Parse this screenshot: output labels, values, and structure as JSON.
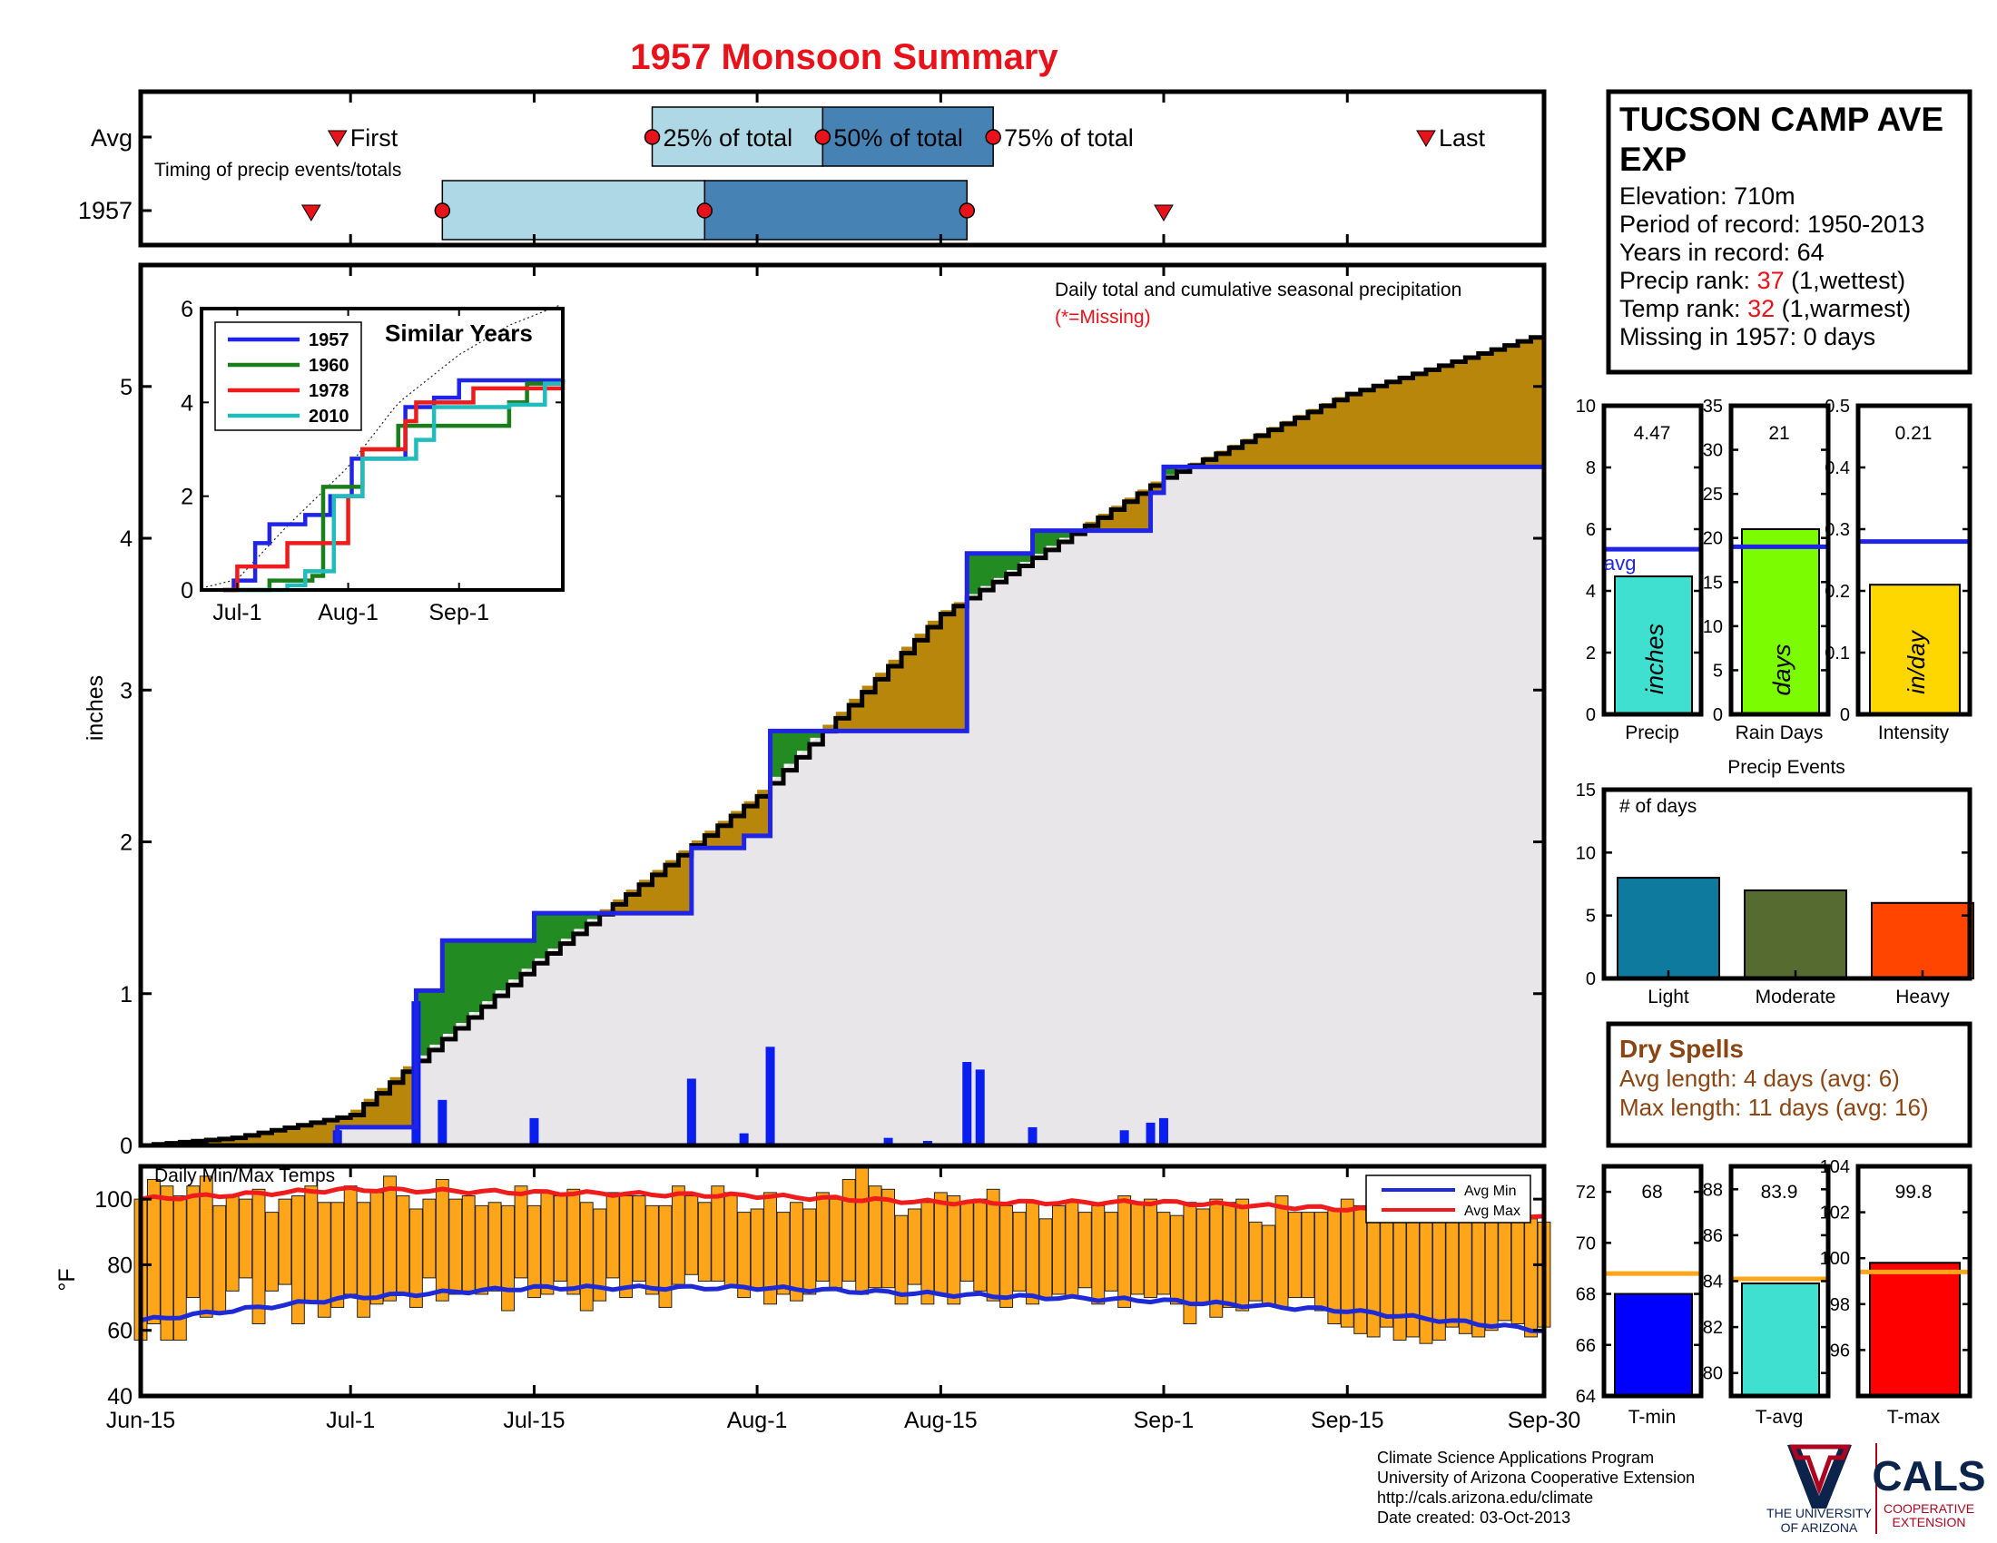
{
  "title": "1957 Monsoon Summary",
  "colors": {
    "title": "#e8121a",
    "light_blue": "#aed8e6",
    "steel_blue": "#4682b4",
    "brown": "#b8860b",
    "green": "#228b22",
    "grey_fill": "#e8e6e8",
    "daily_bar": "#0a1ef0",
    "season_line": "#1f24e6",
    "temp_bar": "#ffa51a",
    "avg_min": "#1e2ad6",
    "avg_max": "#ee1c1c",
    "dry_spells": "#8b4513",
    "marker_red": "#e8121a"
  },
  "timing": {
    "rows": [
      "Avg",
      "1957"
    ],
    "subtitle": "Timing of precip events/totals",
    "labels": {
      "first": "First",
      "p25": "25% of total",
      "p50": "50% of total",
      "p75": "75% of total",
      "last": "Last"
    },
    "avg": {
      "first": "Jun-30",
      "p25": "Jul-24",
      "p50": "Aug-06",
      "p75": "Aug-19",
      "last": "Sep-21"
    },
    "y1957": {
      "first": "Jun-28",
      "p25": "Jul-08",
      "p50": "Jul-28",
      "p75": "Aug-17",
      "last": "Sep-01"
    }
  },
  "station": {
    "name": [
      "TUCSON CAMP AVE",
      "EXP"
    ],
    "elevation": "Elevation: 710m",
    "period": "Period of record: 1950-2013",
    "years": "Years in record: 64",
    "precip_rank_label": "Precip rank: ",
    "precip_rank_value": "37",
    "precip_rank_note": " (1,wettest)",
    "temp_rank_label": "Temp rank: ",
    "temp_rank_value": "32",
    "temp_rank_note": " (1,warmest)",
    "missing": "Missing in 1957: 0 days"
  },
  "main_chart": {
    "ylabel": "inches",
    "title_text": "Daily total and cumulative seasonal precipitation",
    "missing_note": "(*=Missing)",
    "xtick_labels": [
      "Jun-15",
      "Jul-1",
      "Jul-15",
      "Aug-1",
      "Aug-15",
      "Sep-1",
      "Sep-15",
      "Sep-30"
    ],
    "ytick_labels": [
      "0",
      "1",
      "2",
      "3",
      "4",
      "5"
    ]
  },
  "inset": {
    "title": "Similar Years",
    "xtick_labels": [
      "Jul-1",
      "Aug-1",
      "Sep-1"
    ],
    "ytick_labels": [
      "0",
      "2",
      "4",
      "6"
    ],
    "legend": [
      "1957",
      "1960",
      "1978",
      "2010"
    ],
    "series_colors": [
      "#1f24e6",
      "#1a7f1a",
      "#ee1c1c",
      "#22bcbc"
    ]
  },
  "temp_chart": {
    "label": "Daily Min/Max Temps",
    "ylabel": "°F",
    "ytick_labels": [
      "40",
      "60",
      "80",
      "100"
    ],
    "legend": [
      "Avg Min",
      "Avg Max"
    ]
  },
  "mini_bars": {
    "precip": {
      "value": "4.47",
      "label": "Precip",
      "unit": "inches",
      "avg_label": "avg",
      "ytick_labels": [
        "0",
        "2",
        "4",
        "6",
        "8",
        "10"
      ],
      "color": "#40e0d0"
    },
    "raindays": {
      "value": "21",
      "label": "Rain Days",
      "unit": "days",
      "ytick_labels": [
        "0",
        "5",
        "10",
        "15",
        "20",
        "25",
        "30",
        "35"
      ],
      "color": "#7cfc00"
    },
    "intensity": {
      "value": "0.21",
      "label": "Intensity",
      "unit": "in/day",
      "ytick_labels": [
        "0",
        "0.1",
        "0.2",
        "0.3",
        "0.4",
        "0.5"
      ],
      "color": "#ffd700"
    }
  },
  "events": {
    "title": "Precip Events",
    "sublabel": "# of days",
    "ytick_labels": [
      "0",
      "5",
      "10",
      "15"
    ],
    "categories": [
      "Light",
      "Moderate",
      "Heavy"
    ],
    "colors": [
      "#0e7a9e",
      "#556b2f",
      "#ff4500"
    ]
  },
  "dry_spells": {
    "title": "Dry Spells",
    "avg": "Avg length: 4 days (avg: 6)",
    "max": "Max length: 11 days (avg: 16)"
  },
  "temp_bars": {
    "tmin": {
      "value": "68",
      "label": "T-min",
      "ytick_labels": [
        "64",
        "66",
        "68",
        "70",
        "72"
      ],
      "color": "#0000ff"
    },
    "tavg": {
      "value": "83.9",
      "label": "T-avg",
      "ytick_labels": [
        "80",
        "82",
        "84",
        "86",
        "88"
      ],
      "color": "#40e0d0"
    },
    "tmax": {
      "value": "99.8",
      "label": "T-max",
      "ytick_labels": [
        "96",
        "98",
        "100",
        "102",
        "104"
      ],
      "color": "#ff0000"
    }
  },
  "footer": {
    "lines": [
      "Climate Science Applications Program",
      "University of Arizona Cooperative Extension",
      "http://cals.arizona.edu/climate",
      " Date created: 03-Oct-2013"
    ],
    "ua_text": [
      "THE UNIVERSITY",
      "OF ARIZONA"
    ],
    "cals": "CALS",
    "cals_sub": [
      "COOPERATIVE",
      "EXTENSION"
    ]
  },
  "chart_data": [
    {
      "type": "area",
      "title": "Daily total and cumulative seasonal precipitation",
      "ylabel": "inches",
      "x_range": [
        "Jun-15",
        "Sep-30"
      ],
      "ylim": [
        0,
        5.8
      ],
      "season_total_1957": 4.47,
      "average_cumulative_end": 5.35,
      "daily_precip_1957": [
        {
          "date": "Jun-30",
          "value": 0.1
        },
        {
          "date": "Jul-06",
          "value": 0.95
        },
        {
          "date": "Jul-08",
          "value": 0.3
        },
        {
          "date": "Jul-15",
          "value": 0.18
        },
        {
          "date": "Jul-27",
          "value": 0.44
        },
        {
          "date": "Jul-31",
          "value": 0.08
        },
        {
          "date": "Aug-02",
          "value": 0.65
        },
        {
          "date": "Aug-11",
          "value": 0.05
        },
        {
          "date": "Aug-14",
          "value": 0.03
        },
        {
          "date": "Aug-17",
          "value": 0.55
        },
        {
          "date": "Aug-18",
          "value": 0.5
        },
        {
          "date": "Aug-22",
          "value": 0.12
        },
        {
          "date": "Aug-29",
          "value": 0.1
        },
        {
          "date": "Aug-31",
          "value": 0.15
        },
        {
          "date": "Sep-01",
          "value": 0.18
        }
      ],
      "cumulative_1957": [
        {
          "date": "Jun-15",
          "value": 0
        },
        {
          "date": "Jun-30",
          "value": 0.12
        },
        {
          "date": "Jul-06",
          "value": 1.02
        },
        {
          "date": "Jul-08",
          "value": 1.35
        },
        {
          "date": "Jul-15",
          "value": 1.53
        },
        {
          "date": "Jul-27",
          "value": 1.96
        },
        {
          "date": "Jul-31",
          "value": 2.04
        },
        {
          "date": "Aug-02",
          "value": 2.73
        },
        {
          "date": "Aug-17",
          "value": 3.9
        },
        {
          "date": "Aug-22",
          "value": 4.05
        },
        {
          "date": "Aug-31",
          "value": 4.3
        },
        {
          "date": "Sep-01",
          "value": 4.47
        },
        {
          "date": "Sep-30",
          "value": 4.47
        }
      ],
      "cumulative_average": [
        {
          "date": "Jun-15",
          "value": 0
        },
        {
          "date": "Jun-22",
          "value": 0.05
        },
        {
          "date": "Jul-01",
          "value": 0.2
        },
        {
          "date": "Jul-15",
          "value": 1.2
        },
        {
          "date": "Aug-01",
          "value": 2.3
        },
        {
          "date": "Aug-15",
          "value": 3.5
        },
        {
          "date": "Sep-01",
          "value": 4.4
        },
        {
          "date": "Sep-15",
          "value": 4.95
        },
        {
          "date": "Sep-30",
          "value": 5.35
        }
      ]
    },
    {
      "type": "line",
      "title": "Similar Years",
      "ylim": [
        0,
        6
      ],
      "series": [
        {
          "name": "1957",
          "points": [
            {
              "date": "Jun-27",
              "value": 0
            },
            {
              "date": "Jun-30",
              "value": 0.2
            },
            {
              "date": "Jul-06",
              "value": 1
            },
            {
              "date": "Jul-10",
              "value": 1.4
            },
            {
              "date": "Jul-20",
              "value": 1.6
            },
            {
              "date": "Jul-27",
              "value": 2
            },
            {
              "date": "Aug-02",
              "value": 2.8
            },
            {
              "date": "Aug-17",
              "value": 3.9
            },
            {
              "date": "Aug-25",
              "value": 4.1
            },
            {
              "date": "Sep-01",
              "value": 4.47
            },
            {
              "date": "Sep-30",
              "value": 4.5
            }
          ]
        },
        {
          "name": "1960",
          "points": [
            {
              "date": "Jun-27",
              "value": 0
            },
            {
              "date": "Jul-10",
              "value": 0.2
            },
            {
              "date": "Jul-22",
              "value": 0.3
            },
            {
              "date": "Jul-25",
              "value": 2.2
            },
            {
              "date": "Aug-05",
              "value": 3
            },
            {
              "date": "Aug-15",
              "value": 3.5
            },
            {
              "date": "Sep-15",
              "value": 4
            },
            {
              "date": "Sep-20",
              "value": 4.4
            },
            {
              "date": "Sep-30",
              "value": 4.5
            }
          ]
        },
        {
          "name": "1978",
          "points": [
            {
              "date": "Jun-27",
              "value": 0
            },
            {
              "date": "Jul-01",
              "value": 0.5
            },
            {
              "date": "Jul-10",
              "value": 0.5
            },
            {
              "date": "Jul-15",
              "value": 1
            },
            {
              "date": "Aug-01",
              "value": 2
            },
            {
              "date": "Aug-05",
              "value": 3
            },
            {
              "date": "Aug-17",
              "value": 3.6
            },
            {
              "date": "Aug-20",
              "value": 4
            },
            {
              "date": "Sep-05",
              "value": 4.3
            },
            {
              "date": "Sep-30",
              "value": 4.35
            }
          ]
        },
        {
          "name": "2010",
          "points": [
            {
              "date": "Jul-01",
              "value": 0
            },
            {
              "date": "Jul-15",
              "value": 0.1
            },
            {
              "date": "Jul-20",
              "value": 0.4
            },
            {
              "date": "Jul-28",
              "value": 2
            },
            {
              "date": "Aug-05",
              "value": 2.8
            },
            {
              "date": "Aug-20",
              "value": 3.2
            },
            {
              "date": "Aug-25",
              "value": 3.9
            },
            {
              "date": "Sep-15",
              "value": 3.95
            },
            {
              "date": "Sep-25",
              "value": 4.4
            },
            {
              "date": "Sep-30",
              "value": 4.4
            }
          ]
        }
      ]
    },
    {
      "type": "bar",
      "title": "Daily Min/Max Temps",
      "ylabel": "°F",
      "ylim": [
        40,
        110
      ],
      "note": "Each day shows a bar spanning min to max temperature; 108 days Jun-15 to Sep-30 (values estimated).",
      "daily_min_max": [
        [
          57,
          100
        ],
        [
          62,
          106
        ],
        [
          57,
          104
        ],
        [
          57,
          101
        ],
        [
          70,
          104
        ],
        [
          64,
          107
        ],
        [
          65,
          98
        ],
        [
          72,
          101
        ],
        [
          76,
          100
        ],
        [
          62,
          103
        ],
        [
          72,
          96
        ],
        [
          74,
          100
        ],
        [
          62,
          101
        ],
        [
          69,
          104
        ],
        [
          64,
          99
        ],
        [
          67,
          99
        ],
        [
          71,
          104
        ],
        [
          64,
          99
        ],
        [
          68,
          102
        ],
        [
          69,
          107
        ],
        [
          71,
          101
        ],
        [
          67,
          97
        ],
        [
          76,
          100
        ],
        [
          69,
          106
        ],
        [
          71,
          100
        ],
        [
          72,
          101
        ],
        [
          71,
          98
        ],
        [
          72,
          99
        ],
        [
          66,
          98
        ],
        [
          76,
          104
        ],
        [
          70,
          98
        ],
        [
          71,
          102
        ],
        [
          75,
          101
        ],
        [
          71,
          103
        ],
        [
          66,
          99
        ],
        [
          69,
          97
        ],
        [
          76,
          102
        ],
        [
          70,
          101
        ],
        [
          75,
          101
        ],
        [
          71,
          98
        ],
        [
          67,
          98
        ],
        [
          74,
          104
        ],
        [
          77,
          101
        ],
        [
          75,
          99
        ],
        [
          75,
          104
        ],
        [
          73,
          102
        ],
        [
          70,
          96
        ],
        [
          73,
          97
        ],
        [
          68,
          102
        ],
        [
          71,
          96
        ],
        [
          69,
          99
        ],
        [
          71,
          97
        ],
        [
          75,
          102
        ],
        [
          73,
          100
        ],
        [
          75,
          106
        ],
        [
          71,
          110
        ],
        [
          73,
          104
        ],
        [
          73,
          103
        ],
        [
          68,
          95
        ],
        [
          74,
          97
        ],
        [
          68,
          99
        ],
        [
          71,
          102
        ],
        [
          68,
          101
        ],
        [
          75,
          99
        ],
        [
          72,
          100
        ],
        [
          69,
          103
        ],
        [
          67,
          98
        ],
        [
          72,
          96
        ],
        [
          68,
          99
        ],
        [
          70,
          94
        ],
        [
          71,
          98
        ],
        [
          70,
          99
        ],
        [
          73,
          96
        ],
        [
          68,
          98
        ],
        [
          72,
          96
        ],
        [
          67,
          101
        ],
        [
          71,
          99
        ],
        [
          70,
          100
        ],
        [
          71,
          96
        ],
        [
          68,
          95
        ],
        [
          62,
          99
        ],
        [
          68,
          97
        ],
        [
          64,
          100
        ],
        [
          67,
          99
        ],
        [
          66,
          100
        ],
        [
          69,
          93
        ],
        [
          68,
          92
        ],
        [
          67,
          101
        ],
        [
          70,
          96
        ],
        [
          70,
          96
        ],
        [
          66,
          96
        ],
        [
          62,
          97
        ],
        [
          61,
          100
        ],
        [
          59,
          98
        ],
        [
          58,
          101
        ],
        [
          61,
          96
        ],
        [
          57,
          99
        ],
        [
          58,
          103
        ],
        [
          56,
          98
        ],
        [
          57,
          96
        ],
        [
          61,
          100
        ],
        [
          59,
          96
        ],
        [
          58,
          97
        ],
        [
          60,
          94
        ],
        [
          63,
          95
        ],
        [
          62,
          96
        ],
        [
          58,
          94
        ],
        [
          61,
          93
        ]
      ],
      "avg_min": [
        {
          "date": "Jun-15",
          "value": 63
        },
        {
          "date": "Jul-01",
          "value": 70
        },
        {
          "date": "Jul-15",
          "value": 73
        },
        {
          "date": "Aug-01",
          "value": 73
        },
        {
          "date": "Aug-15",
          "value": 71
        },
        {
          "date": "Sep-01",
          "value": 69
        },
        {
          "date": "Sep-15",
          "value": 66
        },
        {
          "date": "Sep-30",
          "value": 60
        }
      ],
      "avg_max": [
        {
          "date": "Jun-15",
          "value": 100
        },
        {
          "date": "Jul-01",
          "value": 103
        },
        {
          "date": "Jul-15",
          "value": 102
        },
        {
          "date": "Aug-01",
          "value": 101
        },
        {
          "date": "Aug-15",
          "value": 99
        },
        {
          "date": "Sep-01",
          "value": 99
        },
        {
          "date": "Sep-15",
          "value": 97
        },
        {
          "date": "Sep-30",
          "value": 95
        }
      ]
    },
    {
      "type": "bar",
      "title": "Precip",
      "categories": [
        "Precip"
      ],
      "values": [
        4.47
      ],
      "average": 5.35,
      "ylim": [
        0,
        10
      ]
    },
    {
      "type": "bar",
      "title": "Rain Days",
      "categories": [
        "Rain Days"
      ],
      "values": [
        21
      ],
      "average": 19,
      "ylim": [
        0,
        35
      ]
    },
    {
      "type": "bar",
      "title": "Intensity",
      "categories": [
        "Intensity"
      ],
      "values": [
        0.21
      ],
      "average": 0.28,
      "ylim": [
        0,
        0.5
      ]
    },
    {
      "type": "bar",
      "title": "Precip Events",
      "categories": [
        "Light",
        "Moderate",
        "Heavy"
      ],
      "values": [
        8,
        7,
        6
      ],
      "ylim": [
        0,
        15
      ]
    },
    {
      "type": "bar",
      "title": "T-min",
      "categories": [
        "T-min"
      ],
      "values": [
        68
      ],
      "average": 68.8,
      "ylim": [
        64,
        73
      ]
    },
    {
      "type": "bar",
      "title": "T-avg",
      "categories": [
        "T-avg"
      ],
      "values": [
        83.9
      ],
      "average": 84.1,
      "ylim": [
        79,
        89
      ]
    },
    {
      "type": "bar",
      "title": "T-max",
      "categories": [
        "T-max"
      ],
      "values": [
        99.8
      ],
      "average": 99.4,
      "ylim": [
        94,
        104
      ]
    }
  ]
}
